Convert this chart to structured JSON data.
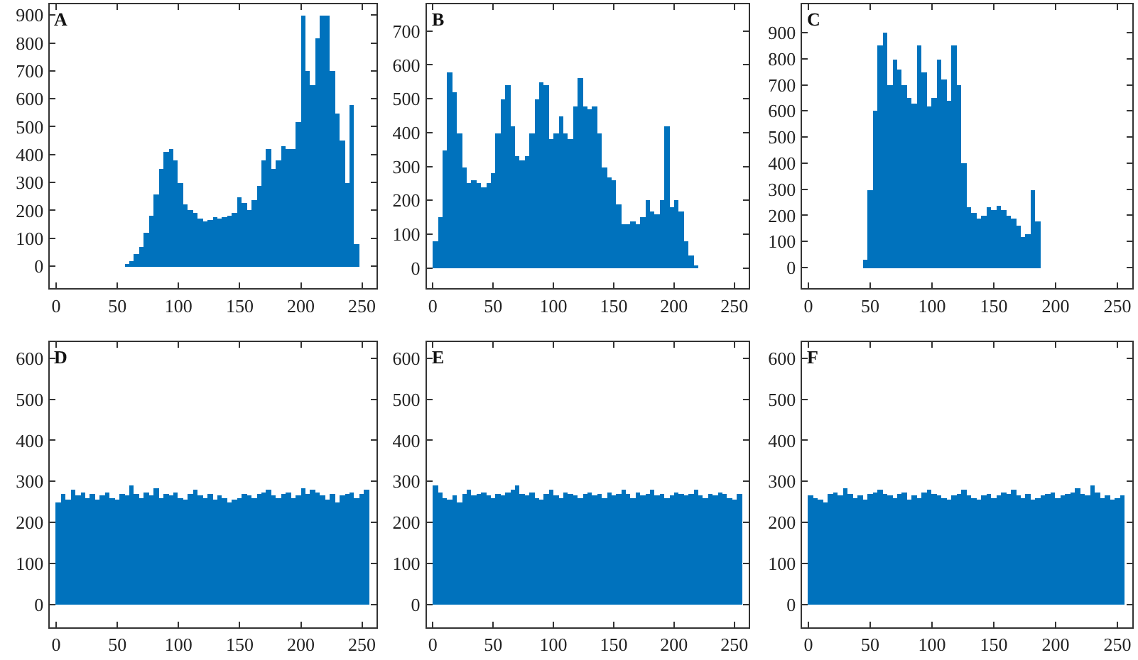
{
  "chart_data": [
    {
      "type": "histogram",
      "title": "A",
      "color": "#0072bd",
      "xlim": [
        -5,
        262
      ],
      "xticks": [
        0,
        50,
        100,
        150,
        200,
        250
      ],
      "ylim": [
        -80,
        940
      ],
      "yticks": [
        0,
        100,
        200,
        300,
        400,
        500,
        600,
        700,
        800,
        900
      ],
      "bins": [
        0,
        4,
        8,
        12,
        16,
        20,
        24,
        28,
        32,
        36,
        40,
        44,
        48,
        52,
        56,
        60,
        64,
        68,
        72,
        76,
        80,
        84,
        88,
        92,
        96,
        100,
        104,
        108,
        112,
        116,
        120,
        124,
        128,
        132,
        136,
        140,
        144,
        148,
        152,
        156,
        160,
        164,
        168,
        172,
        176,
        180,
        184,
        188,
        192,
        196,
        200,
        204,
        208,
        212,
        216,
        220,
        224,
        228,
        232,
        236,
        240,
        244,
        248,
        252,
        256
      ],
      "values": [
        0,
        0,
        0,
        0,
        0,
        0,
        0,
        0,
        0,
        0,
        0,
        0,
        0,
        0,
        5,
        20,
        45,
        70,
        120,
        180,
        260,
        350,
        410,
        420,
        380,
        300,
        220,
        200,
        190,
        170,
        160,
        165,
        175,
        170,
        175,
        180,
        190,
        250,
        230,
        200,
        240,
        290,
        380,
        420,
        350,
        380,
        430,
        420,
        420,
        520,
        900,
        700,
        650,
        820,
        900,
        900,
        700,
        550,
        450,
        300,
        580,
        80,
        0,
        0
      ]
    },
    {
      "type": "histogram",
      "title": "B",
      "color": "#0072bd",
      "xlim": [
        -5,
        262
      ],
      "xticks": [
        0,
        50,
        100,
        150,
        200,
        250
      ],
      "ylim": [
        -60,
        780
      ],
      "yticks": [
        0,
        100,
        200,
        300,
        400,
        500,
        600,
        700
      ],
      "bins": [
        0,
        4,
        8,
        12,
        16,
        20,
        24,
        28,
        32,
        36,
        40,
        44,
        48,
        52,
        56,
        60,
        64,
        68,
        72,
        76,
        80,
        84,
        88,
        92,
        96,
        100,
        104,
        108,
        112,
        116,
        120,
        124,
        128,
        132,
        136,
        140,
        144,
        148,
        152,
        156,
        160,
        164,
        168,
        172,
        176,
        180,
        184,
        188,
        192,
        196,
        200,
        204,
        208,
        212,
        216,
        220,
        224,
        228,
        232,
        236,
        240,
        244,
        248,
        252,
        256
      ],
      "values": [
        80,
        150,
        350,
        580,
        520,
        400,
        300,
        250,
        260,
        250,
        240,
        250,
        280,
        400,
        500,
        540,
        420,
        330,
        320,
        330,
        400,
        500,
        550,
        540,
        380,
        400,
        450,
        400,
        380,
        480,
        560,
        480,
        470,
        480,
        400,
        300,
        270,
        260,
        190,
        130,
        130,
        140,
        130,
        150,
        200,
        170,
        160,
        200,
        420,
        180,
        200,
        170,
        80,
        40,
        10,
        0,
        0,
        0,
        0,
        0,
        0,
        0,
        0,
        0
      ]
    },
    {
      "type": "histogram",
      "title": "C",
      "color": "#0072bd",
      "xlim": [
        -5,
        262
      ],
      "xticks": [
        0,
        50,
        100,
        150,
        200,
        250
      ],
      "ylim": [
        -80,
        1010
      ],
      "yticks": [
        0,
        100,
        200,
        300,
        400,
        500,
        600,
        700,
        800,
        900
      ],
      "bins": [
        0,
        4,
        8,
        12,
        16,
        20,
        24,
        28,
        32,
        36,
        40,
        44,
        48,
        52,
        56,
        60,
        64,
        68,
        72,
        76,
        80,
        84,
        88,
        92,
        96,
        100,
        104,
        108,
        112,
        116,
        120,
        124,
        128,
        132,
        136,
        140,
        144,
        148,
        152,
        156,
        160,
        164,
        168,
        172,
        176,
        180,
        184,
        188,
        192,
        196,
        200,
        204,
        208,
        212,
        216,
        220,
        224,
        228,
        232,
        236,
        240,
        244,
        248,
        252,
        256
      ],
      "values": [
        0,
        0,
        0,
        0,
        0,
        0,
        0,
        0,
        0,
        0,
        0,
        30,
        300,
        600,
        850,
        900,
        700,
        800,
        760,
        700,
        650,
        630,
        850,
        750,
        620,
        650,
        800,
        720,
        640,
        850,
        700,
        400,
        230,
        210,
        190,
        200,
        230,
        220,
        240,
        220,
        200,
        190,
        160,
        120,
        130,
        300,
        180,
        0,
        0,
        0,
        0,
        0,
        0,
        0,
        0,
        0,
        0,
        0,
        0,
        0,
        0,
        0,
        0,
        0
      ]
    },
    {
      "type": "histogram",
      "title": "D",
      "color": "#0072bd",
      "xlim": [
        -5,
        262
      ],
      "xticks": [
        0,
        50,
        100,
        150,
        200,
        250
      ],
      "ylim": [
        -55,
        640
      ],
      "yticks": [
        0,
        100,
        200,
        300,
        400,
        500,
        600
      ],
      "bins": [
        0,
        4,
        8,
        12,
        16,
        20,
        24,
        28,
        32,
        36,
        40,
        44,
        48,
        52,
        56,
        60,
        64,
        68,
        72,
        76,
        80,
        84,
        88,
        92,
        96,
        100,
        104,
        108,
        112,
        116,
        120,
        124,
        128,
        132,
        136,
        140,
        144,
        148,
        152,
        156,
        160,
        164,
        168,
        172,
        176,
        180,
        184,
        188,
        192,
        196,
        200,
        204,
        208,
        212,
        216,
        220,
        224,
        228,
        232,
        236,
        240,
        244,
        248,
        252,
        256
      ],
      "values": [
        250,
        270,
        255,
        280,
        265,
        275,
        260,
        270,
        255,
        265,
        275,
        260,
        255,
        270,
        265,
        290,
        270,
        260,
        275,
        265,
        285,
        260,
        270,
        265,
        275,
        260,
        255,
        270,
        280,
        265,
        260,
        270,
        255,
        265,
        260,
        250,
        255,
        260,
        270,
        265,
        260,
        270,
        275,
        280,
        265,
        260,
        270,
        275,
        260,
        265,
        285,
        270,
        280,
        275,
        265,
        255,
        270,
        250,
        265,
        270,
        275,
        260,
        270,
        280
      ]
    },
    {
      "type": "histogram",
      "title": "E",
      "color": "#0072bd",
      "xlim": [
        -5,
        262
      ],
      "xticks": [
        0,
        50,
        100,
        150,
        200,
        250
      ],
      "ylim": [
        -55,
        640
      ],
      "yticks": [
        0,
        100,
        200,
        300,
        400,
        500,
        600
      ],
      "bins": [
        0,
        4,
        8,
        12,
        16,
        20,
        24,
        28,
        32,
        36,
        40,
        44,
        48,
        52,
        56,
        60,
        64,
        68,
        72,
        76,
        80,
        84,
        88,
        92,
        96,
        100,
        104,
        108,
        112,
        116,
        120,
        124,
        128,
        132,
        136,
        140,
        144,
        148,
        152,
        156,
        160,
        164,
        168,
        172,
        176,
        180,
        184,
        188,
        192,
        196,
        200,
        204,
        208,
        212,
        216,
        220,
        224,
        228,
        232,
        236,
        240,
        244,
        248,
        252,
        256
      ],
      "values": [
        290,
        275,
        260,
        255,
        265,
        250,
        270,
        280,
        265,
        270,
        275,
        265,
        260,
        270,
        265,
        275,
        280,
        290,
        270,
        265,
        275,
        260,
        255,
        270,
        280,
        265,
        260,
        275,
        270,
        265,
        260,
        270,
        275,
        265,
        270,
        260,
        275,
        265,
        270,
        280,
        270,
        260,
        275,
        265,
        270,
        280,
        265,
        270,
        260,
        265,
        275,
        270,
        265,
        270,
        280,
        265,
        260,
        270,
        265,
        275,
        270,
        260,
        255,
        270
      ]
    },
    {
      "type": "histogram",
      "title": "F",
      "color": "#0072bd",
      "xlim": [
        -5,
        262
      ],
      "xticks": [
        0,
        50,
        100,
        150,
        200,
        250
      ],
      "ylim": [
        -55,
        640
      ],
      "yticks": [
        0,
        100,
        200,
        300,
        400,
        500,
        600
      ],
      "bins": [
        0,
        4,
        8,
        12,
        16,
        20,
        24,
        28,
        32,
        36,
        40,
        44,
        48,
        52,
        56,
        60,
        64,
        68,
        72,
        76,
        80,
        84,
        88,
        92,
        96,
        100,
        104,
        108,
        112,
        116,
        120,
        124,
        128,
        132,
        136,
        140,
        144,
        148,
        152,
        156,
        160,
        164,
        168,
        172,
        176,
        180,
        184,
        188,
        192,
        196,
        200,
        204,
        208,
        212,
        216,
        220,
        224,
        228,
        232,
        236,
        240,
        244,
        248,
        252,
        256
      ],
      "values": [
        265,
        260,
        255,
        250,
        270,
        275,
        265,
        285,
        270,
        260,
        265,
        255,
        270,
        275,
        280,
        270,
        265,
        260,
        270,
        275,
        255,
        265,
        260,
        275,
        280,
        270,
        265,
        260,
        255,
        265,
        270,
        280,
        265,
        260,
        255,
        265,
        270,
        260,
        265,
        275,
        270,
        280,
        265,
        260,
        270,
        255,
        260,
        265,
        270,
        275,
        260,
        265,
        270,
        275,
        285,
        270,
        265,
        290,
        275,
        260,
        265,
        255,
        260,
        265
      ]
    }
  ]
}
